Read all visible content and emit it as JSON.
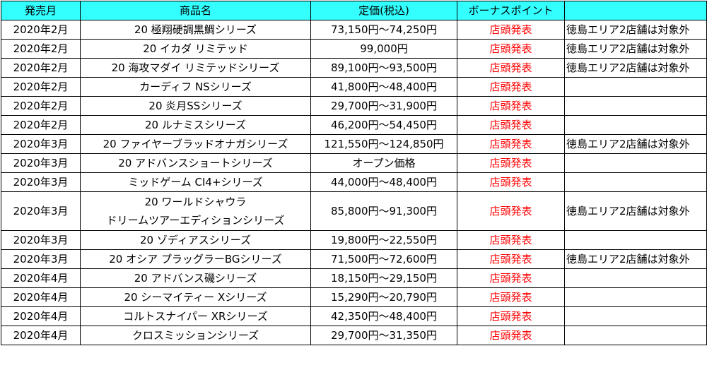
{
  "headers": [
    "発売月",
    "商品名",
    "定価(税込)",
    "ボーナスポイント",
    ""
  ],
  "rows": [
    {
      "month": "2020年2月",
      "name": [
        "20 極翔硬調黒鯛シリーズ"
      ],
      "price": "73,150円～74,250円",
      "bonus": "店頭発表",
      "note": "徳島エリア2店舗は対象外"
    },
    {
      "month": "2020年2月",
      "name": [
        "20 イカダ リミテッド"
      ],
      "price": "99,000円",
      "bonus": "店頭発表",
      "note": "徳島エリア2店舗は対象外"
    },
    {
      "month": "2020年2月",
      "name": [
        "20 海攻マダイ リミテッドシリーズ"
      ],
      "price": "89,100円～93,500円",
      "bonus": "店頭発表",
      "note": "徳島エリア2店舗は対象外"
    },
    {
      "month": "2020年2月",
      "name": [
        "カーディフ NSシリーズ"
      ],
      "price": "41,800円～48,400円",
      "bonus": "店頭発表",
      "note": ""
    },
    {
      "month": "2020年2月",
      "name": [
        "20 炎月SSシリーズ"
      ],
      "price": "29,700円～31,900円",
      "bonus": "店頭発表",
      "note": ""
    },
    {
      "month": "2020年2月",
      "name": [
        "20 ルナミスシリーズ"
      ],
      "price": "46,200円～54,450円",
      "bonus": "店頭発表",
      "note": ""
    },
    {
      "month": "2020年3月",
      "name": [
        "20 ファイヤーブラッドオナガシリーズ"
      ],
      "price": "121,550円～124,850円",
      "bonus": "店頭発表",
      "note": "徳島エリア2店舗は対象外"
    },
    {
      "month": "2020年3月",
      "name": [
        "20 アドバンスショートシリーズ"
      ],
      "price": "オープン価格",
      "bonus": "店頭発表",
      "note": ""
    },
    {
      "month": "2020年3月",
      "name": [
        "ミッドゲーム CI4+シリーズ"
      ],
      "price": "44,000円～48,400円",
      "bonus": "店頭発表",
      "note": ""
    },
    {
      "month": "2020年3月",
      "name": [
        "20 ワールドシャウラ",
        "ドリームツアーエディションシリーズ"
      ],
      "price": "85,800円～91,300円",
      "bonus": "店頭発表",
      "note": "徳島エリア2店舗は対象外"
    },
    {
      "month": "2020年3月",
      "name": [
        "20 ゾディアスシリーズ"
      ],
      "price": "19,800円～22,550円",
      "bonus": "店頭発表",
      "note": ""
    },
    {
      "month": "2020年3月",
      "name": [
        "20 オシア プラッグラーBGシリーズ"
      ],
      "price": "71,500円～72,600円",
      "bonus": "店頭発表",
      "note": "徳島エリア2店舗は対象外"
    },
    {
      "month": "2020年4月",
      "name": [
        "20 アドバンス磯シリーズ"
      ],
      "price": "18,150円～29,150円",
      "bonus": "店頭発表",
      "note": ""
    },
    {
      "month": "2020年4月",
      "name": [
        "20 シーマイティー Xシリーズ"
      ],
      "price": "15,290円～20,790円",
      "bonus": "店頭発表",
      "note": ""
    },
    {
      "month": "2020年4月",
      "name": [
        "コルトスナイパー XRシリーズ"
      ],
      "price": "42,350円～48,400円",
      "bonus": "店頭発表",
      "note": ""
    },
    {
      "month": "2020年4月",
      "name": [
        "クロスミッションシリーズ"
      ],
      "price": "29,700円～31,350円",
      "bonus": "店頭発表",
      "note": ""
    }
  ],
  "colors": {
    "header_bg": "#33ffff",
    "bonus_text": "#ff0000",
    "border": "#000000"
  }
}
